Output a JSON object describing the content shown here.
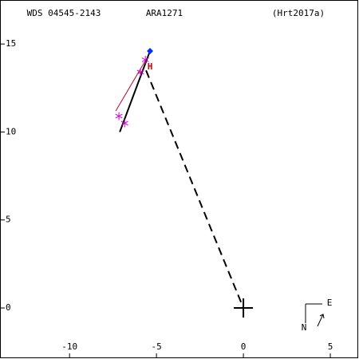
{
  "chart_data": {
    "type": "scatter",
    "titles": [
      "WDS 04545-2143",
      "ARA1271",
      "(Hrt2017a)"
    ],
    "xlim": [
      -14.0,
      6.65
    ],
    "ylim": [
      -2.9,
      17.5
    ],
    "xticks": [
      -10,
      -5,
      0,
      5
    ],
    "yticks": [
      0,
      5,
      10,
      15
    ],
    "series": [
      {
        "color": "#000000",
        "style": "solid",
        "x": [
          -7.11,
          -5.41
        ],
        "y": [
          10.0,
          14.5
        ]
      },
      {
        "color": "#000000",
        "style": "dashed",
        "x": [
          -5.6,
          0
        ],
        "y": [
          13.5,
          0
        ]
      },
      {
        "color": "#c00030",
        "style": "thin",
        "x": [
          -7.34,
          -5.55
        ],
        "y": [
          11.2,
          14.2
        ]
      },
      {
        "color": "#d000d0",
        "marker": "star",
        "x": [
          -7.16,
          -6.83,
          -5.92,
          -5.64
        ],
        "y": [
          10.9,
          10.5,
          13.4,
          14.1
        ]
      },
      {
        "color": "#0030ff",
        "marker": "diamond",
        "x": [
          -5.37
        ],
        "y": [
          14.6
        ]
      },
      {
        "color": "#000000",
        "marker": "cross",
        "x": [
          0
        ],
        "y": [
          0
        ]
      }
    ],
    "annotations": [
      {
        "text": "H",
        "x": -5.37,
        "y": 13.7,
        "color": "#e00000"
      }
    ],
    "compass": [
      "E",
      "N"
    ]
  }
}
